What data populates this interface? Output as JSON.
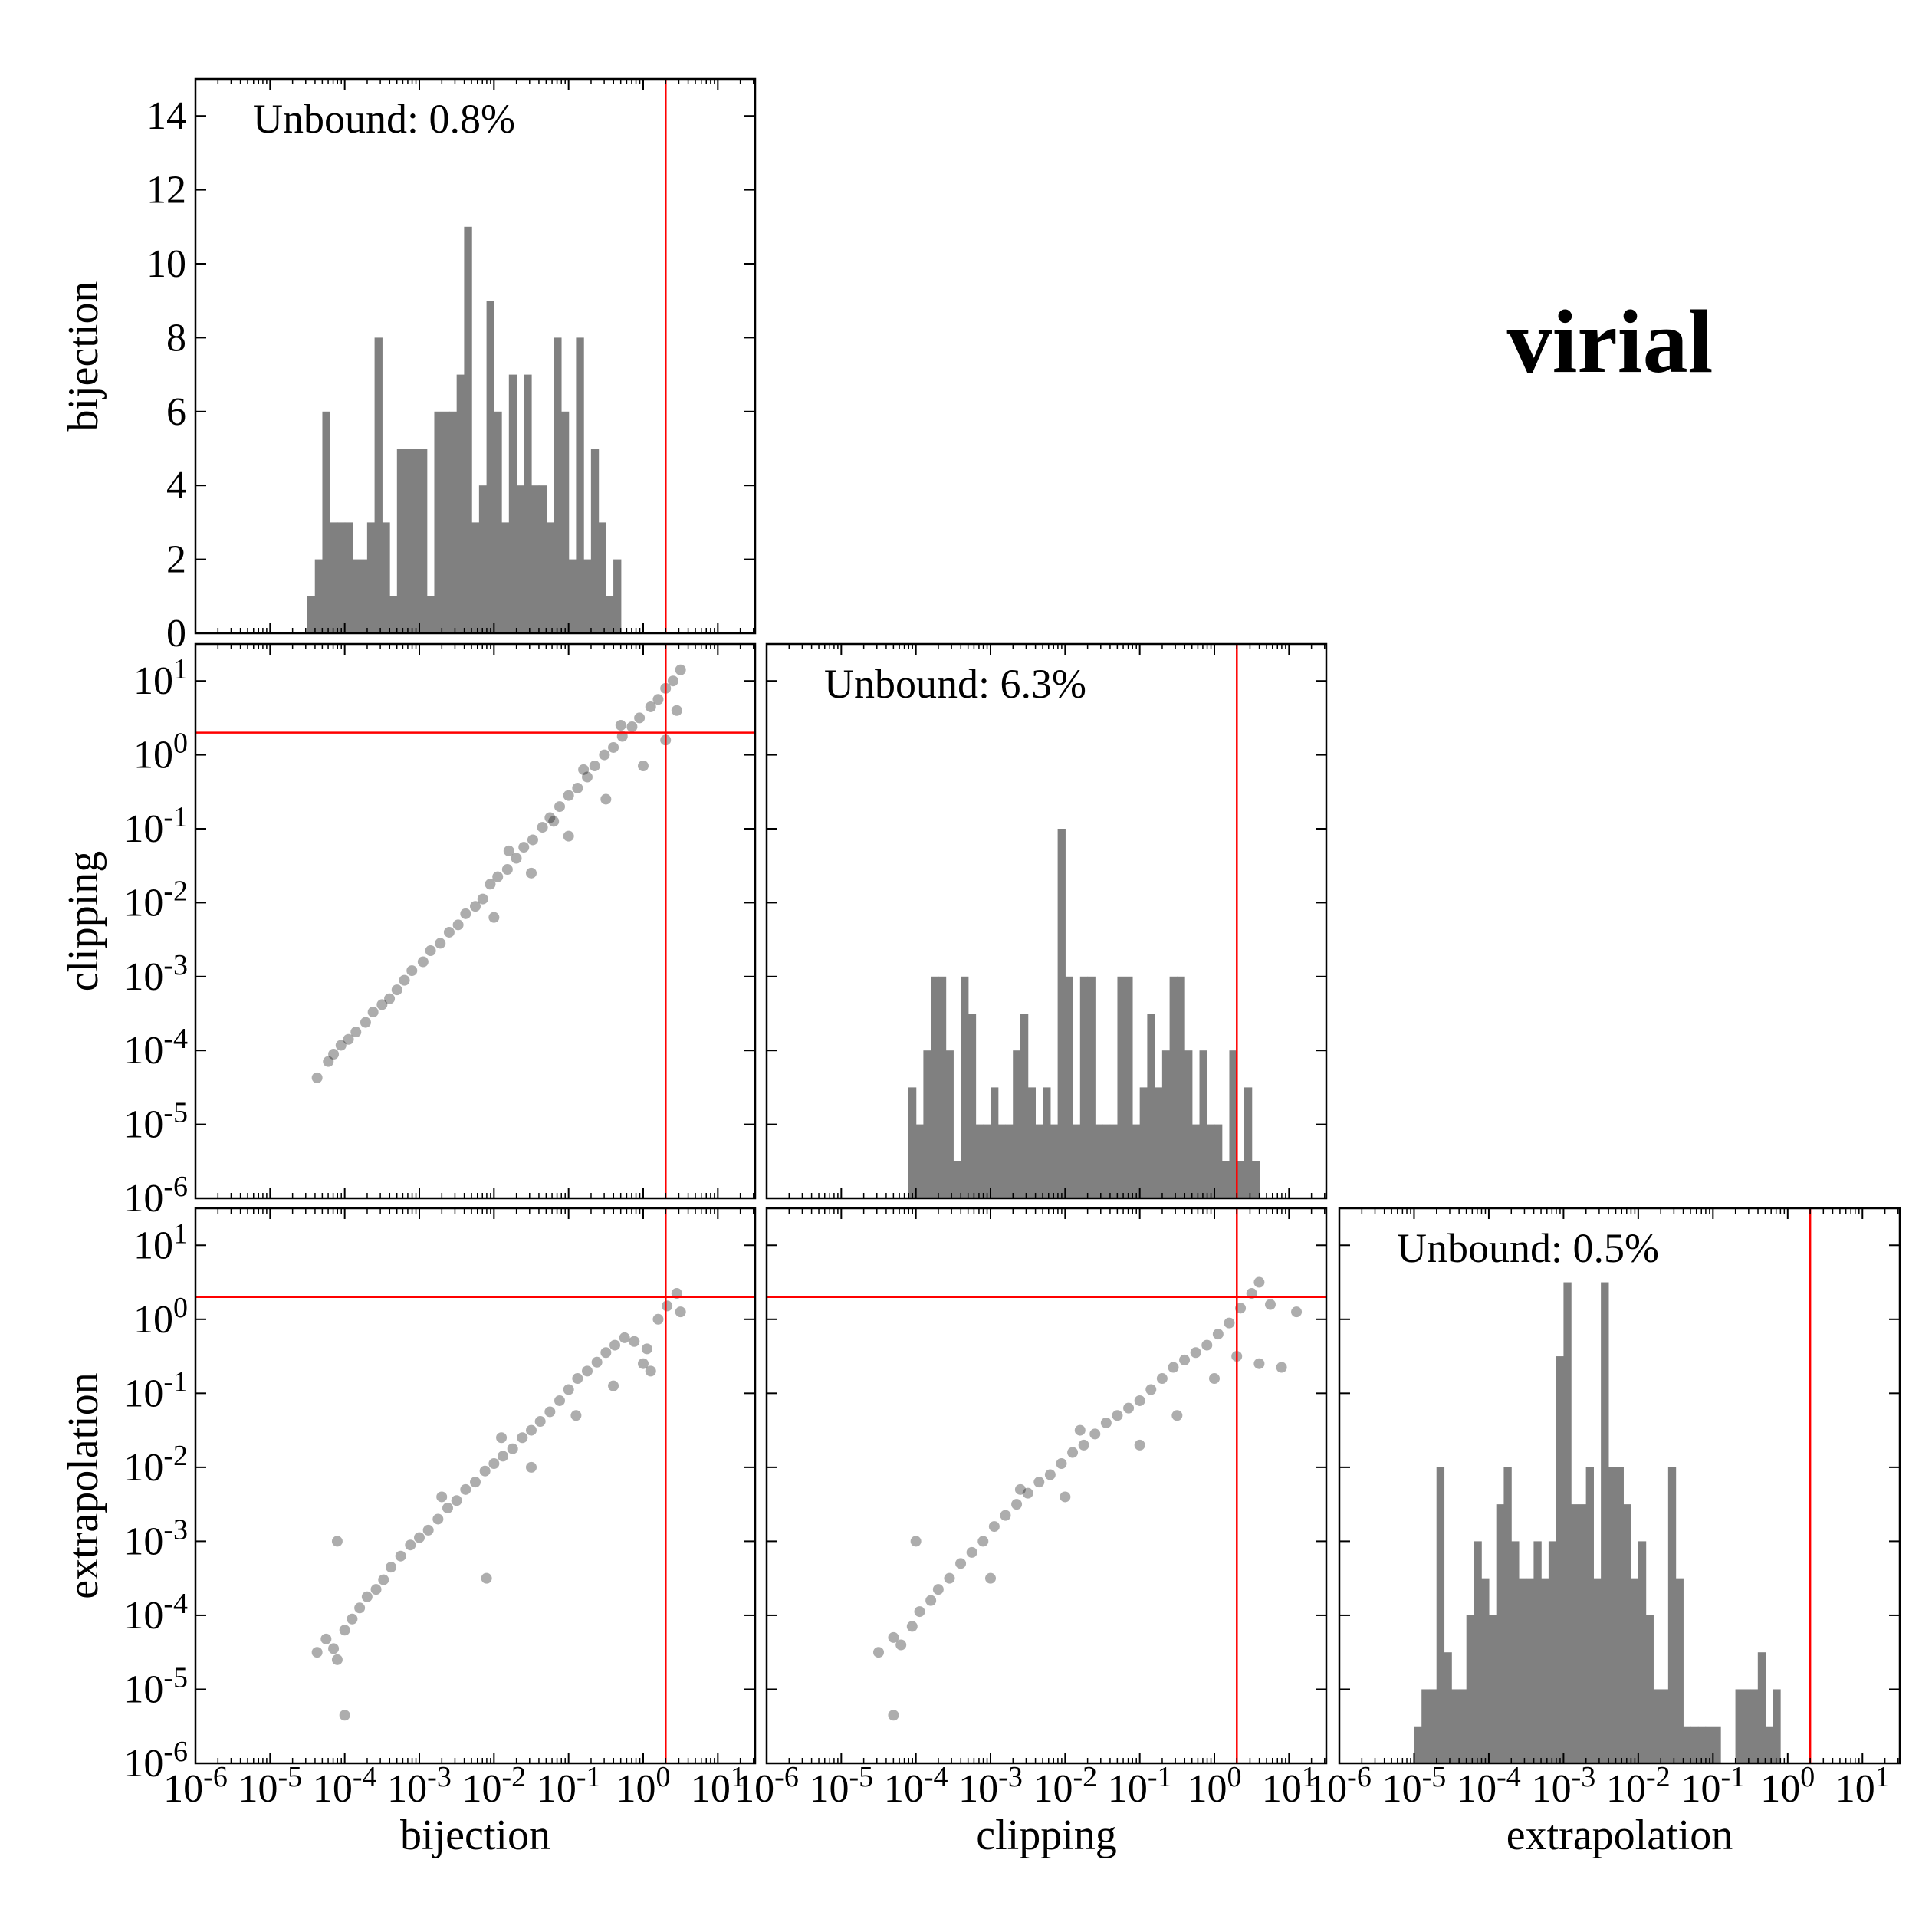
{
  "figure_title": "virial",
  "colors": {
    "hist": "#808080",
    "threshold": "#ff0000",
    "scatter": "#000000",
    "axis": "#000000"
  },
  "tick_labels": {
    "log_x": [
      "10-6",
      "10-5",
      "10-4",
      "10-3",
      "10-2",
      "10-1",
      "100",
      "101"
    ],
    "log_y": [
      "10-6",
      "10-5",
      "10-4",
      "10-3",
      "10-2",
      "10-1",
      "100",
      "101"
    ],
    "hist_counts": [
      "0",
      "2",
      "4",
      "6",
      "8",
      "10",
      "12",
      "14"
    ]
  },
  "chart_data": [
    {
      "type": "bar",
      "panel": "bijection-histogram",
      "ylabel": "bijection",
      "annotation": "Unbound: 0.8%",
      "xlim": [
        -6.0,
        1.5
      ],
      "ylim": [
        0,
        15
      ],
      "xscale": "log",
      "threshold": 2,
      "bin_log_start": -4.5,
      "bin_log_width": 0.1,
      "values": [
        1,
        2,
        6,
        3,
        3,
        3,
        2,
        2,
        3,
        8,
        3,
        1,
        5,
        5,
        5,
        5,
        1,
        6,
        6,
        6,
        7,
        11,
        3,
        4,
        9,
        6,
        3,
        7,
        4,
        7,
        4,
        4,
        3,
        8,
        6,
        2,
        8,
        2,
        5,
        3,
        1,
        2
      ]
    },
    {
      "type": "scatter",
      "panel": "clipping-vs-bijection",
      "ylabel": "clipping",
      "xlim": [
        -6.0,
        1.5
      ],
      "ylim": [
        -6.0,
        1.5
      ],
      "xscale": "log",
      "yscale": "log",
      "threshold_x": 2,
      "threshold_y": 2,
      "points": [
        [
          -4.37,
          -4.37
        ],
        [
          -4.22,
          -4.15
        ],
        [
          -4.15,
          -4.05
        ],
        [
          -4.05,
          -3.93
        ],
        [
          -3.95,
          -3.85
        ],
        [
          -3.85,
          -3.75
        ],
        [
          -3.72,
          -3.62
        ],
        [
          -3.62,
          -3.48
        ],
        [
          -3.5,
          -3.38
        ],
        [
          -3.4,
          -3.3
        ],
        [
          -3.3,
          -3.18
        ],
        [
          -3.2,
          -3.05
        ],
        [
          -3.1,
          -2.92
        ],
        [
          -2.95,
          -2.8
        ],
        [
          -2.85,
          -2.65
        ],
        [
          -2.72,
          -2.55
        ],
        [
          -2.6,
          -2.4
        ],
        [
          -2.48,
          -2.3
        ],
        [
          -2.38,
          -2.15
        ],
        [
          -2.25,
          -2.05
        ],
        [
          -2.15,
          -1.95
        ],
        [
          -2.05,
          -1.75
        ],
        [
          -1.95,
          -1.65
        ],
        [
          -1.82,
          -1.55
        ],
        [
          -1.7,
          -1.4
        ],
        [
          -1.6,
          -1.25
        ],
        [
          -1.48,
          -1.15
        ],
        [
          -1.35,
          -0.98
        ],
        [
          -1.25,
          -0.85
        ],
        [
          -1.12,
          -0.7
        ],
        [
          -1.0,
          -0.55
        ],
        [
          -0.88,
          -0.45
        ],
        [
          -0.75,
          -0.3
        ],
        [
          -0.65,
          -0.15
        ],
        [
          -0.52,
          0.0
        ],
        [
          -0.4,
          0.1
        ],
        [
          -0.28,
          0.25
        ],
        [
          -0.15,
          0.38
        ],
        [
          -0.05,
          0.5
        ],
        [
          0.1,
          0.65
        ],
        [
          0.2,
          0.75
        ],
        [
          0.3,
          0.9
        ],
        [
          0.4,
          1.0
        ],
        [
          0.5,
          1.15
        ],
        [
          -2.0,
          -2.2
        ],
        [
          -1.5,
          -1.6
        ],
        [
          -1.0,
          -1.1
        ],
        [
          -0.5,
          -0.6
        ],
        [
          0.0,
          -0.15
        ],
        [
          0.3,
          0.2
        ],
        [
          0.45,
          0.6
        ],
        [
          -1.8,
          -1.3
        ],
        [
          -1.2,
          -0.9
        ],
        [
          -0.8,
          -0.2
        ],
        [
          -0.3,
          0.4
        ]
      ]
    },
    {
      "type": "bar",
      "panel": "clipping-histogram",
      "annotation": "Unbound: 6.3%",
      "xlim": [
        -6.0,
        1.5
      ],
      "ylim": [
        0,
        15
      ],
      "xscale": "log",
      "threshold": 2,
      "bin_log_start": -4.1,
      "bin_log_width": 0.1,
      "values": [
        3,
        2,
        4,
        6,
        6,
        4,
        1,
        6,
        5,
        2,
        2,
        3,
        2,
        2,
        4,
        5,
        3,
        2,
        3,
        2,
        10,
        6,
        2,
        6,
        6,
        2,
        2,
        2,
        6,
        6,
        2,
        3,
        5,
        3,
        4,
        6,
        6,
        4,
        2,
        4,
        2,
        2,
        1,
        4,
        1,
        3,
        1
      ]
    },
    {
      "type": "scatter",
      "panel": "extrapolation-vs-bijection",
      "ylabel": "extrapolation",
      "xlim": [
        -6.0,
        1.5
      ],
      "ylim": [
        -6.0,
        1.5
      ],
      "xscale": "log",
      "yscale": "log",
      "threshold_x": 2,
      "threshold_y": 2,
      "points": [
        [
          -4.37,
          -4.5
        ],
        [
          -4.25,
          -4.32
        ],
        [
          -4.15,
          -4.45
        ],
        [
          -4.1,
          -4.6
        ],
        [
          -4.0,
          -4.2
        ],
        [
          -3.9,
          -4.05
        ],
        [
          -3.8,
          -3.9
        ],
        [
          -3.7,
          -3.75
        ],
        [
          -3.58,
          -3.65
        ],
        [
          -3.48,
          -3.52
        ],
        [
          -3.38,
          -3.35
        ],
        [
          -3.25,
          -3.2
        ],
        [
          -3.12,
          -3.05
        ],
        [
          -3.0,
          -2.95
        ],
        [
          -2.88,
          -2.85
        ],
        [
          -2.75,
          -2.7
        ],
        [
          -2.62,
          -2.55
        ],
        [
          -2.5,
          -2.45
        ],
        [
          -2.38,
          -2.3
        ],
        [
          -2.25,
          -2.2
        ],
        [
          -2.12,
          -2.05
        ],
        [
          -2.0,
          -1.95
        ],
        [
          -1.88,
          -1.85
        ],
        [
          -1.75,
          -1.75
        ],
        [
          -1.62,
          -1.6
        ],
        [
          -1.5,
          -1.5
        ],
        [
          -1.38,
          -1.38
        ],
        [
          -1.25,
          -1.25
        ],
        [
          -1.12,
          -1.1
        ],
        [
          -1.0,
          -0.95
        ],
        [
          -0.88,
          -0.8
        ],
        [
          -0.75,
          -0.7
        ],
        [
          -0.62,
          -0.58
        ],
        [
          -0.5,
          -0.45
        ],
        [
          -0.38,
          -0.35
        ],
        [
          -0.25,
          -0.25
        ],
        [
          -0.12,
          -0.3
        ],
        [
          0.0,
          -0.6
        ],
        [
          0.1,
          -0.7
        ],
        [
          0.2,
          0.0
        ],
        [
          0.32,
          0.18
        ],
        [
          0.45,
          0.35
        ],
        [
          0.5,
          0.1
        ],
        [
          -4.1,
          -3.0
        ],
        [
          -4.0,
          -5.35
        ],
        [
          -2.1,
          -3.5
        ],
        [
          -1.5,
          -2.0
        ],
        [
          -0.9,
          -1.3
        ],
        [
          -0.4,
          -0.9
        ],
        [
          0.05,
          -0.4
        ],
        [
          -2.7,
          -2.4
        ],
        [
          -1.9,
          -1.6
        ]
      ]
    },
    {
      "type": "scatter",
      "panel": "extrapolation-vs-clipping",
      "xlim": [
        -6.0,
        1.5
      ],
      "ylim": [
        -6.0,
        1.5
      ],
      "xscale": "log",
      "yscale": "log",
      "threshold_x": 2,
      "threshold_y": 2,
      "points": [
        [
          -4.5,
          -4.5
        ],
        [
          -4.3,
          -4.3
        ],
        [
          -4.2,
          -4.4
        ],
        [
          -4.05,
          -4.15
        ],
        [
          -3.95,
          -3.95
        ],
        [
          -3.8,
          -3.8
        ],
        [
          -3.7,
          -3.65
        ],
        [
          -3.55,
          -3.5
        ],
        [
          -3.4,
          -3.3
        ],
        [
          -3.25,
          -3.15
        ],
        [
          -3.1,
          -3.0
        ],
        [
          -2.95,
          -2.8
        ],
        [
          -2.8,
          -2.65
        ],
        [
          -2.65,
          -2.5
        ],
        [
          -2.5,
          -2.35
        ],
        [
          -2.35,
          -2.2
        ],
        [
          -2.2,
          -2.1
        ],
        [
          -2.05,
          -1.95
        ],
        [
          -1.9,
          -1.8
        ],
        [
          -1.75,
          -1.7
        ],
        [
          -1.6,
          -1.55
        ],
        [
          -1.45,
          -1.4
        ],
        [
          -1.3,
          -1.3
        ],
        [
          -1.15,
          -1.2
        ],
        [
          -1.0,
          -1.1
        ],
        [
          -0.85,
          -0.95
        ],
        [
          -0.7,
          -0.8
        ],
        [
          -0.55,
          -0.65
        ],
        [
          -0.4,
          -0.55
        ],
        [
          -0.25,
          -0.45
        ],
        [
          -0.1,
          -0.35
        ],
        [
          0.05,
          -0.2
        ],
        [
          0.2,
          -0.05
        ],
        [
          0.35,
          0.15
        ],
        [
          0.5,
          0.35
        ],
        [
          0.6,
          0.5
        ],
        [
          0.75,
          0.2
        ],
        [
          0.9,
          -0.65
        ],
        [
          1.1,
          0.1
        ],
        [
          -4.0,
          -3.0
        ],
        [
          -4.3,
          -5.35
        ],
        [
          -3.0,
          -3.5
        ],
        [
          -2.0,
          -2.4
        ],
        [
          -1.0,
          -1.7
        ],
        [
          -0.5,
          -1.3
        ],
        [
          0.0,
          -0.8
        ],
        [
          0.3,
          -0.5
        ],
        [
          -2.6,
          -2.3
        ],
        [
          -1.8,
          -1.5
        ],
        [
          0.6,
          -0.6
        ]
      ]
    },
    {
      "type": "bar",
      "panel": "extrapolation-histogram",
      "annotation": "Unbound: 0.5%",
      "xlim": [
        -6.0,
        1.5
      ],
      "ylim": [
        0,
        15
      ],
      "xscale": "log",
      "threshold": 2,
      "bin_log_start": -5.0,
      "bin_log_width": 0.1,
      "values": [
        1,
        2,
        2,
        8,
        3,
        2,
        2,
        4,
        6,
        5,
        4,
        7,
        8,
        6,
        5,
        5,
        6,
        5,
        6,
        11,
        13,
        7,
        7,
        8,
        5,
        13,
        8,
        8,
        7,
        5,
        6,
        4,
        2,
        2,
        8,
        5,
        1,
        1,
        1,
        1,
        1,
        0,
        0,
        2,
        2,
        2,
        3,
        1,
        2
      ]
    }
  ]
}
